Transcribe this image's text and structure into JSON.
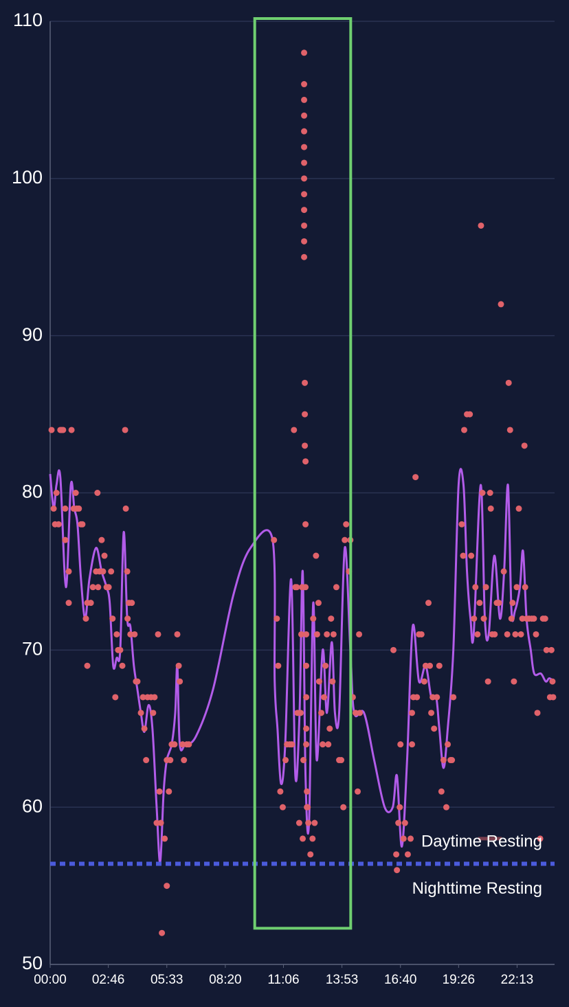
{
  "chart_data": {
    "type": "scatter",
    "xlim": [
      0,
      1440
    ],
    "ylim": [
      50,
      110
    ],
    "yticks": [
      50,
      60,
      70,
      80,
      90,
      100,
      110
    ],
    "xticks": [
      {
        "value": 0,
        "label": "00:00"
      },
      {
        "value": 166,
        "label": "02:46"
      },
      {
        "value": 333,
        "label": "05:33"
      },
      {
        "value": 500,
        "label": "08:20"
      },
      {
        "value": 666,
        "label": "11:06"
      },
      {
        "value": 833,
        "label": "13:53"
      },
      {
        "value": 1000,
        "label": "16:40"
      },
      {
        "value": 1166,
        "label": "19:26"
      },
      {
        "value": 1333,
        "label": "22:13"
      }
    ],
    "grid": true,
    "points": {
      "color": "#e0626a",
      "x": [
        4,
        10,
        14,
        18,
        24,
        29,
        33,
        37,
        43,
        43,
        53,
        53,
        61,
        67,
        73,
        76,
        82,
        88,
        92,
        102,
        106,
        106,
        116,
        122,
        131,
        135,
        137,
        141,
        147,
        151,
        155,
        161,
        167,
        174,
        178,
        186,
        190,
        194,
        200,
        206,
        214,
        216,
        220,
        221,
        225,
        229,
        233,
        241,
        245,
        249,
        259,
        265,
        269,
        274,
        278,
        288,
        294,
        298,
        304,
        308,
        312,
        316,
        319,
        327,
        333,
        333,
        339,
        343,
        347,
        355,
        363,
        367,
        370,
        378,
        382,
        390,
        396,
        639,
        647,
        651,
        657,
        664,
        672,
        676,
        684,
        690,
        696,
        700,
        704,
        706,
        711,
        715,
        717,
        719,
        721,
        723,
        725,
        725,
        725,
        725,
        725,
        725,
        725,
        725,
        725,
        725,
        725,
        725,
        725,
        727,
        727,
        727,
        729,
        729,
        729,
        731,
        731,
        731,
        731,
        731,
        733,
        733,
        735,
        737,
        743,
        749,
        751,
        755,
        759,
        762,
        766,
        768,
        774,
        778,
        782,
        786,
        790,
        794,
        798,
        802,
        806,
        809,
        817,
        825,
        831,
        837,
        841,
        845,
        853,
        857,
        864,
        872,
        878,
        882,
        884,
        980,
        988,
        990,
        994,
        998,
        1000,
        1009,
        1013,
        1021,
        1029,
        1033,
        1033,
        1037,
        1043,
        1047,
        1053,
        1060,
        1068,
        1072,
        1080,
        1084,
        1088,
        1092,
        1096,
        1104,
        1111,
        1117,
        1123,
        1131,
        1135,
        1143,
        1147,
        1151,
        1175,
        1179,
        1182,
        1190,
        1198,
        1202,
        1210,
        1214,
        1220,
        1226,
        1230,
        1234,
        1238,
        1244,
        1250,
        1256,
        1258,
        1262,
        1269,
        1275,
        1281,
        1287,
        1295,
        1305,
        1309,
        1313,
        1317,
        1320,
        1324,
        1328,
        1332,
        1338,
        1344,
        1348,
        1354,
        1356,
        1360,
        1367,
        1375,
        1381,
        1387,
        1391,
        1399,
        1407,
        1413,
        1417,
        1427,
        1431,
        1434,
        1436
      ],
      "values": [
        84,
        79,
        78,
        80,
        78,
        84,
        84,
        84,
        79,
        77,
        73,
        75,
        84,
        79,
        80,
        79,
        79,
        78,
        78,
        72,
        69,
        73,
        73,
        74,
        75,
        80,
        74,
        75,
        77,
        75,
        76,
        74,
        74,
        75,
        72,
        67,
        71,
        70,
        70,
        69,
        84,
        79,
        75,
        72,
        73,
        71,
        73,
        71,
        68,
        68,
        66,
        67,
        65,
        63,
        67,
        67,
        66,
        67,
        59,
        71,
        61,
        59,
        52,
        58,
        55,
        63,
        61,
        63,
        64,
        64,
        71,
        69,
        68,
        64,
        63,
        64,
        64,
        77,
        72,
        69,
        61,
        60,
        63,
        64,
        64,
        64,
        84,
        74,
        74,
        66,
        59,
        66,
        71,
        74,
        58,
        63,
        108,
        106,
        105,
        104,
        103,
        102,
        101,
        100,
        99,
        98,
        97,
        96,
        95,
        87,
        85,
        83,
        82,
        78,
        74,
        71,
        69,
        67,
        65,
        64,
        61,
        60,
        60,
        59,
        57,
        58,
        72,
        59,
        76,
        71,
        73,
        68,
        66,
        64,
        67,
        69,
        71,
        64,
        65,
        72,
        68,
        71,
        74,
        63,
        63,
        60,
        77,
        78,
        75,
        77,
        67,
        66,
        61,
        71,
        66,
        70,
        57,
        56,
        59,
        60,
        64,
        58,
        59,
        57,
        58,
        64,
        66,
        67,
        81,
        67,
        71,
        71,
        68,
        69,
        73,
        69,
        66,
        67,
        65,
        67,
        69,
        61,
        63,
        60,
        64,
        63,
        63,
        67,
        78,
        76,
        84,
        85,
        85,
        76,
        72,
        74,
        71,
        73,
        97,
        80,
        72,
        74,
        68,
        80,
        79,
        71,
        71,
        73,
        73,
        92,
        75,
        71,
        87,
        84,
        72,
        73,
        68,
        71,
        74,
        79,
        71,
        72,
        83,
        74,
        72,
        72,
        72,
        72,
        71,
        66,
        58,
        72,
        72,
        70,
        67,
        70,
        68,
        67
      ]
    },
    "trend": {
      "color": "#b25ce9",
      "x": [
        0,
        10,
        18,
        29,
        45,
        59,
        69,
        78,
        88,
        100,
        112,
        131,
        147,
        161,
        170,
        180,
        190,
        200,
        210,
        220,
        229,
        239,
        249,
        259,
        269,
        281,
        292,
        304,
        314,
        324,
        333,
        347,
        357,
        363,
        370,
        386,
        416,
        465,
        523,
        572,
        635,
        641,
        649,
        659,
        671,
        688,
        700,
        712,
        721,
        729,
        739,
        751,
        761,
        778,
        790,
        804,
        813,
        825,
        841,
        857,
        868,
        896,
        925,
        955,
        978,
        990,
        1004,
        1019,
        1035,
        1053,
        1072,
        1088,
        1102,
        1111,
        1123,
        1135,
        1151,
        1166,
        1180,
        1190,
        1200,
        1209,
        1229,
        1241,
        1252,
        1268,
        1284,
        1296,
        1307,
        1317,
        1327,
        1341,
        1350,
        1360,
        1372,
        1382,
        1401,
        1415,
        1425,
        1439
      ],
      "values": [
        81.2,
        79,
        80.5,
        81,
        74,
        80.5,
        79,
        78,
        74.5,
        72,
        74.5,
        76.5,
        75,
        74,
        73,
        69,
        69.5,
        70,
        77.5,
        72,
        71.5,
        69,
        67.5,
        66,
        64.8,
        66.5,
        65,
        60,
        56.5,
        61,
        63,
        64,
        66,
        69,
        64,
        64,
        64.5,
        67.5,
        73.5,
        76.5,
        77,
        68,
        65,
        61.5,
        64,
        74.5,
        62,
        66,
        75,
        62,
        59,
        73,
        63,
        70,
        66,
        70.5,
        66,
        66,
        76.5,
        70,
        66,
        66,
        63,
        60,
        60,
        62,
        57.5,
        63,
        71.5,
        68,
        69,
        67,
        67,
        65,
        62.5,
        65,
        70,
        80.5,
        80.5,
        75,
        72,
        71,
        80.5,
        72,
        71,
        76,
        72,
        75,
        80.5,
        72.5,
        72.5,
        74,
        76.3,
        72,
        70,
        68.5,
        68.5,
        68,
        68.2,
        68
      ]
    },
    "nighttime_resting": {
      "value": 56.4,
      "color": "#4b5bdc",
      "label": "Nighttime Resting"
    },
    "daytime_resting": {
      "value": 58,
      "label": "Daytime Resting"
    },
    "highlight": {
      "xlim": [
        584,
        858
      ],
      "ylim": [
        52.3,
        110
      ],
      "color": "#6fcf70"
    }
  }
}
